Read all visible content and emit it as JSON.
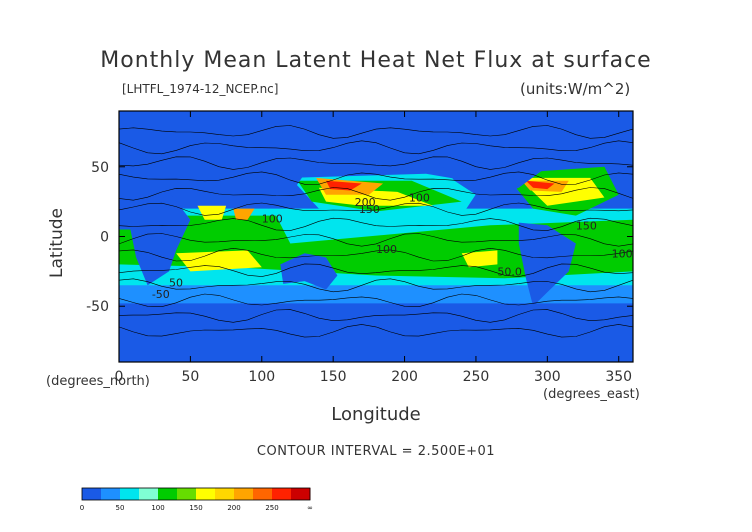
{
  "figure": {
    "title": "Monthly Mean Latent Heat Net Flux at surface",
    "filename": "[LHTFL_1974-12_NCEP.nc]",
    "units": "(units:W/m^2)",
    "xlabel": "Longitude",
    "ylabel": "Latitude",
    "x_unit": "(degrees_east)",
    "y_unit": "(degrees_north)",
    "contour_interval": "CONTOUR INTERVAL = 2.500E+01"
  },
  "chart_data": {
    "type": "heatmap",
    "title": "Monthly Mean Latent Heat Net Flux at surface",
    "xlabel": "Longitude",
    "ylabel": "Latitude",
    "xlim": [
      0,
      360
    ],
    "ylim": [
      -90,
      90
    ],
    "x_ticks": [
      "0",
      "50",
      "100",
      "150",
      "200",
      "250",
      "300",
      "350"
    ],
    "y_ticks": [
      "50",
      "0",
      "-50"
    ],
    "contour_labels": [
      "-50",
      "100",
      "150",
      "200",
      "100",
      "150",
      "100",
      "100",
      "50.0",
      "50"
    ],
    "colorbar": {
      "ticks": [
        "0",
        "50",
        "100",
        "150",
        "200",
        "250",
        "∞"
      ],
      "colors": [
        "#1a5ae6",
        "#1e90ff",
        "#00e5ee",
        "#7fffd4",
        "#00cc00",
        "#66dd00",
        "#ffff00",
        "#ffd700",
        "#ffa500",
        "#ff6600",
        "#ff2200",
        "#cc0000"
      ]
    }
  }
}
